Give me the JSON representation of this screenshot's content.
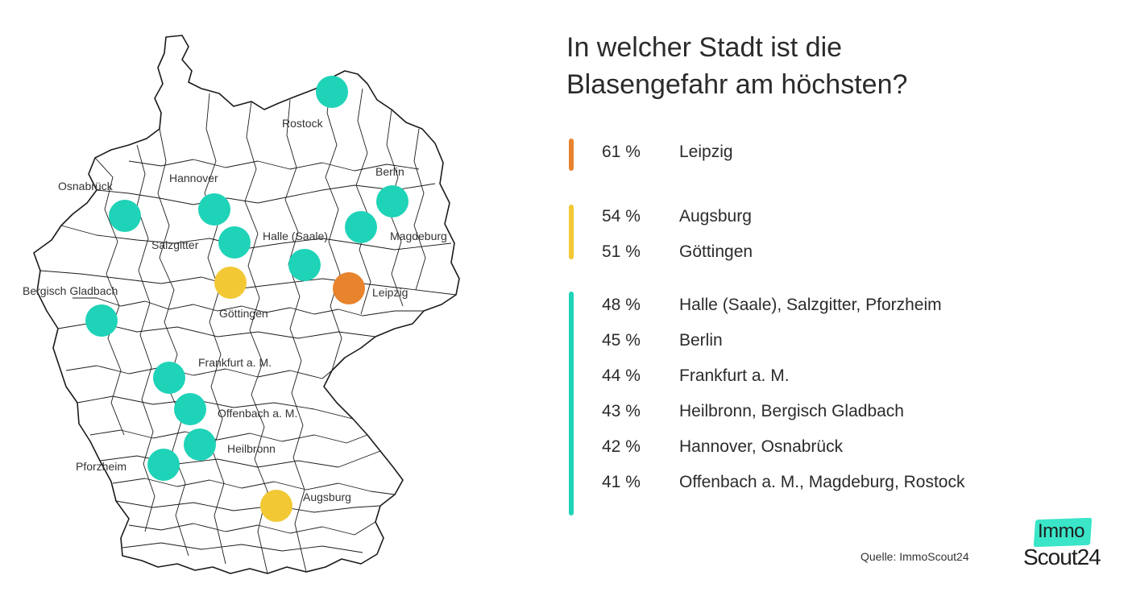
{
  "title": {
    "line1": "In welcher Stadt ist die",
    "line2": "Blasengefahr am höchsten?"
  },
  "colors": {
    "orange": "#e8832e",
    "yellow": "#f2c935",
    "teal": "#1fd3b8",
    "map_stroke": "#1a1a1a"
  },
  "legend": {
    "groups": [
      {
        "color": "orange",
        "rows": [
          {
            "pct": "61 %",
            "cities": "Leipzig"
          }
        ]
      },
      {
        "color": "yellow",
        "rows": [
          {
            "pct": "54 %",
            "cities": "Augsburg"
          },
          {
            "pct": "51 %",
            "cities": "Göttingen"
          }
        ]
      },
      {
        "color": "teal",
        "rows": [
          {
            "pct": "48 %",
            "cities": "Halle (Saale), Salzgitter, Pforzheim"
          },
          {
            "pct": "45 %",
            "cities": "Berlin"
          },
          {
            "pct": "44 %",
            "cities": "Frankfurt a. M."
          },
          {
            "pct": "43 %",
            "cities": "Heilbronn, Bergisch Gladbach"
          },
          {
            "pct": "42 %",
            "cities": "Hannover, Osnabrück"
          },
          {
            "pct": "41 %",
            "cities": "Offenbach a. M., Magdeburg, Rostock"
          }
        ]
      }
    ]
  },
  "map": {
    "cities": [
      {
        "name": "Rostock",
        "color": "teal"
      },
      {
        "name": "Berlin",
        "color": "teal"
      },
      {
        "name": "Osnabrück",
        "color": "teal"
      },
      {
        "name": "Hannover",
        "color": "teal"
      },
      {
        "name": "Salzgitter",
        "color": "teal"
      },
      {
        "name": "Halle (Saale)",
        "color": "teal"
      },
      {
        "name": "Magdeburg",
        "color": "teal"
      },
      {
        "name": "Leipzig",
        "color": "orange"
      },
      {
        "name": "Göttingen",
        "color": "yellow"
      },
      {
        "name": "Bergisch Gladbach",
        "color": "teal"
      },
      {
        "name": "Frankfurt a. M.",
        "color": "teal"
      },
      {
        "name": "Offenbach a. M.",
        "color": "teal"
      },
      {
        "name": "Heilbronn",
        "color": "teal"
      },
      {
        "name": "Pforzheim",
        "color": "teal"
      },
      {
        "name": "Augsburg",
        "color": "yellow"
      }
    ]
  },
  "source": "Quelle: ImmoScout24",
  "logo": {
    "top": "Immo",
    "bottom": "Scout24"
  }
}
